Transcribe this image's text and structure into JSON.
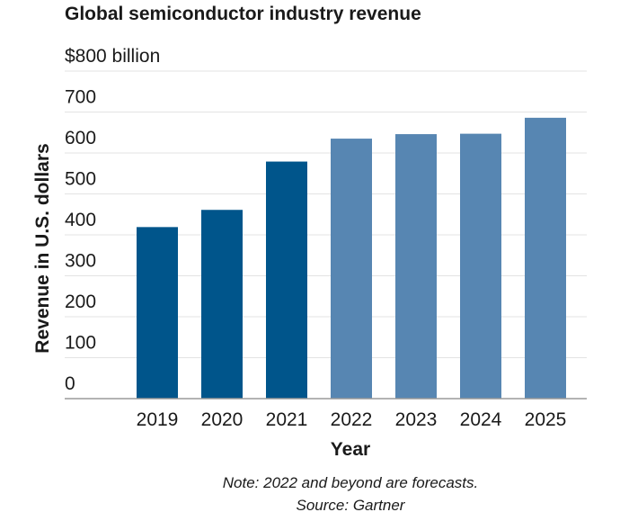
{
  "chart_data": {
    "type": "bar",
    "title": "Global semiconductor industry revenue",
    "top_tick_label": "$800 billion",
    "ylabel": "Revenue in U.S. dollars",
    "xlabel": "Year",
    "categories": [
      "2019",
      "2020",
      "2021",
      "2022",
      "2023",
      "2024",
      "2025"
    ],
    "values": [
      419,
      461,
      579,
      635,
      646,
      647,
      686
    ],
    "forecast": [
      false,
      false,
      false,
      true,
      true,
      true,
      true
    ],
    "y_ticks": [
      0,
      100,
      200,
      300,
      400,
      500,
      600,
      700,
      800
    ],
    "ylim": [
      0,
      800
    ],
    "grid": true,
    "colors": {
      "actual": "#00558b",
      "forecast": "#5786b2",
      "grid": "#e3e3e3",
      "baseline": "#9a9a9a"
    },
    "notes": [
      "Note: 2022 and beyond are forecasts.",
      "Source: Gartner"
    ]
  }
}
